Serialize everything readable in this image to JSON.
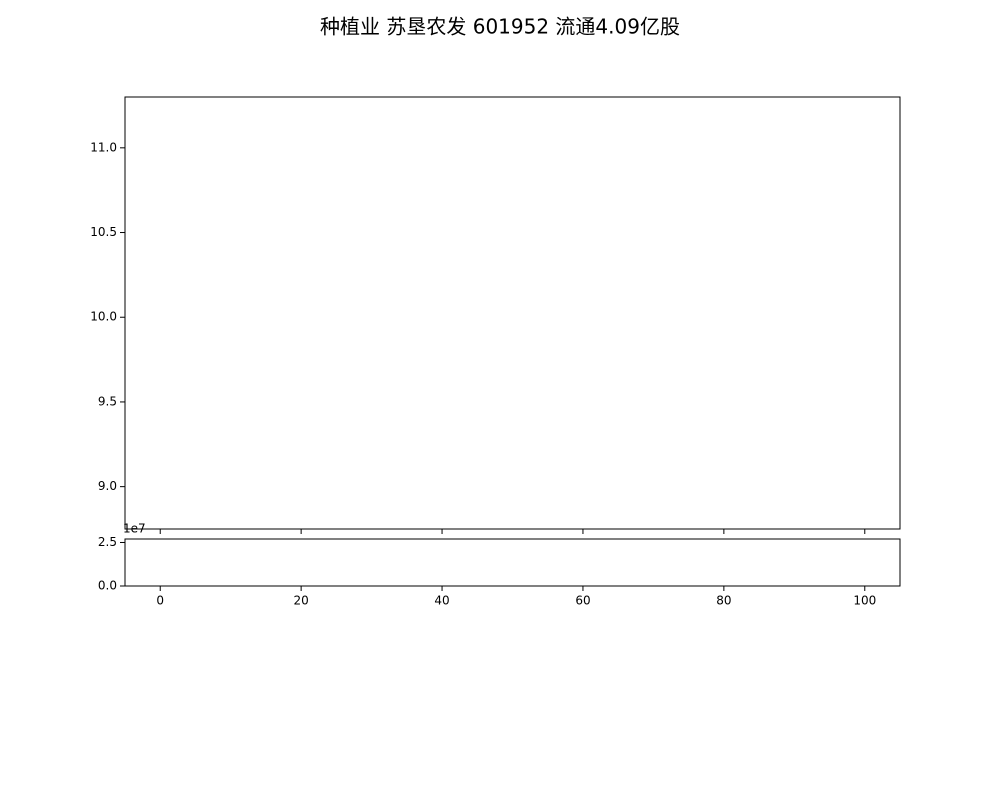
{
  "chart_data": {
    "type": "candlestick",
    "title": "种植业 苏垦农发 601952 流通4.09亿股",
    "xlabel": "",
    "ylabel": "",
    "price_axis": {
      "ylim": [
        8.75,
        11.3
      ],
      "yticks": [
        9.0,
        9.5,
        10.0,
        10.5,
        11.0
      ],
      "ytick_labels": [
        "9.0",
        "9.5",
        "10.0",
        "10.5",
        "11.0"
      ]
    },
    "volume_axis": {
      "ylim": [
        0,
        2.7
      ],
      "yticks": [
        0.0,
        2.5
      ],
      "ytick_labels": [
        "0.0",
        "2.5"
      ],
      "offset_label": "1e7"
    },
    "x_axis": {
      "xlim": [
        -5,
        105
      ],
      "xticks": [
        0,
        20,
        40,
        60,
        80,
        100
      ],
      "xtick_labels": [
        "0",
        "20",
        "40",
        "60",
        "80",
        "100"
      ]
    },
    "colors": {
      "up": "#222222",
      "down": "#ee2222",
      "ma_short": "#000000",
      "ma_mid": "#bbbb33",
      "ma_long": "#ff3333",
      "bands": "#3333ff",
      "volume": "#1f77b4"
    },
    "series": []
  }
}
